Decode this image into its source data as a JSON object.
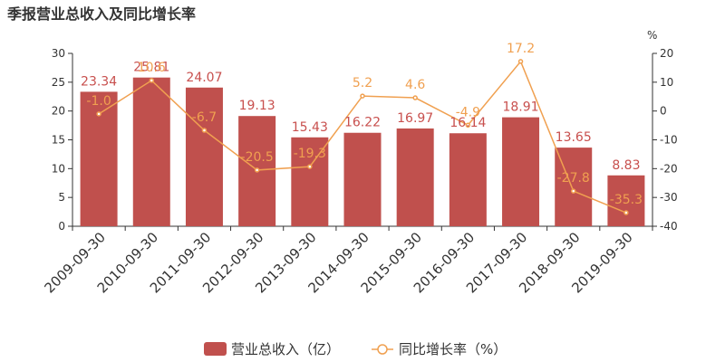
{
  "title": "季报营业总收入及同比增长率",
  "chart_data": {
    "type": "bar",
    "title": "季报营业总收入及同比增长率",
    "categories": [
      "2009-09-30",
      "2010-09-30",
      "2011-09-30",
      "2012-09-30",
      "2013-09-30",
      "2014-09-30",
      "2015-09-30",
      "2016-09-30",
      "2017-09-30",
      "2018-09-30",
      "2019-09-30"
    ],
    "series": [
      {
        "name": "营业总收入（亿）",
        "type": "bar",
        "axis": "left",
        "color": "#c0504d",
        "values": [
          23.34,
          25.81,
          24.07,
          19.13,
          15.43,
          16.22,
          16.97,
          16.14,
          18.91,
          13.65,
          8.83
        ]
      },
      {
        "name": "同比增长率（%）",
        "type": "line",
        "axis": "right",
        "color": "#f0a050",
        "values": [
          -1.0,
          10.6,
          -6.7,
          -20.5,
          -19.3,
          5.2,
          4.6,
          -4.9,
          17.2,
          -27.8,
          -35.3
        ]
      }
    ],
    "y_left": {
      "min": 0,
      "max": 30,
      "ticks": [
        0,
        5,
        10,
        15,
        20,
        25,
        30
      ]
    },
    "y_right": {
      "label": "%",
      "min": -40,
      "max": 20,
      "ticks": [
        -40,
        -30,
        -20,
        -10,
        0,
        10,
        20
      ]
    },
    "legend_position": "bottom",
    "grid": false
  }
}
